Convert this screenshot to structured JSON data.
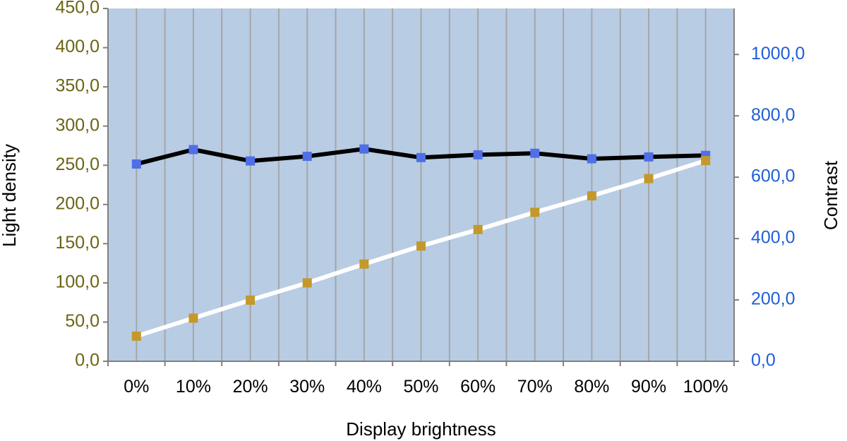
{
  "chart_data": {
    "type": "line",
    "title": "",
    "xlabel": "Display brightness",
    "ylabel_left": "Light density",
    "ylabel_right": "Contrast",
    "categories": [
      "0%",
      "10%",
      "20%",
      "30%",
      "40%",
      "50%",
      "60%",
      "70%",
      "80%",
      "90%",
      "100%"
    ],
    "y_left": {
      "lim": [
        0,
        450
      ],
      "ticks": [
        0,
        50,
        100,
        150,
        200,
        250,
        300,
        350,
        400,
        450
      ],
      "tick_labels": [
        "0,0",
        "50,0",
        "100,0",
        "150,0",
        "200,0",
        "250,0",
        "300,0",
        "350,0",
        "400,0",
        "450,0"
      ],
      "color": "#6b6414"
    },
    "y_right": {
      "lim": [
        0,
        1150
      ],
      "ticks": [
        0,
        200,
        400,
        600,
        800,
        1000
      ],
      "tick_labels": [
        "0,0",
        "200,0",
        "400,0",
        "600,0",
        "800,0",
        "1000,0"
      ],
      "color": "#1f5fd6"
    },
    "series": [
      {
        "axis": "right",
        "values": [
          643,
          690,
          653,
          668,
          692,
          664,
          673,
          678,
          660,
          666,
          671
        ],
        "line_color": "#000000",
        "marker_color": "#4f6fe8"
      },
      {
        "axis": "left",
        "values": [
          32,
          55,
          78,
          100,
          124,
          147,
          168,
          190,
          211,
          233,
          256
        ],
        "line_color": "#ffffff",
        "marker_color": "#c4982a"
      }
    ],
    "grid": true,
    "plot_background": "#b8cce4",
    "grid_color": "#a6a6a6",
    "legend": "none"
  }
}
